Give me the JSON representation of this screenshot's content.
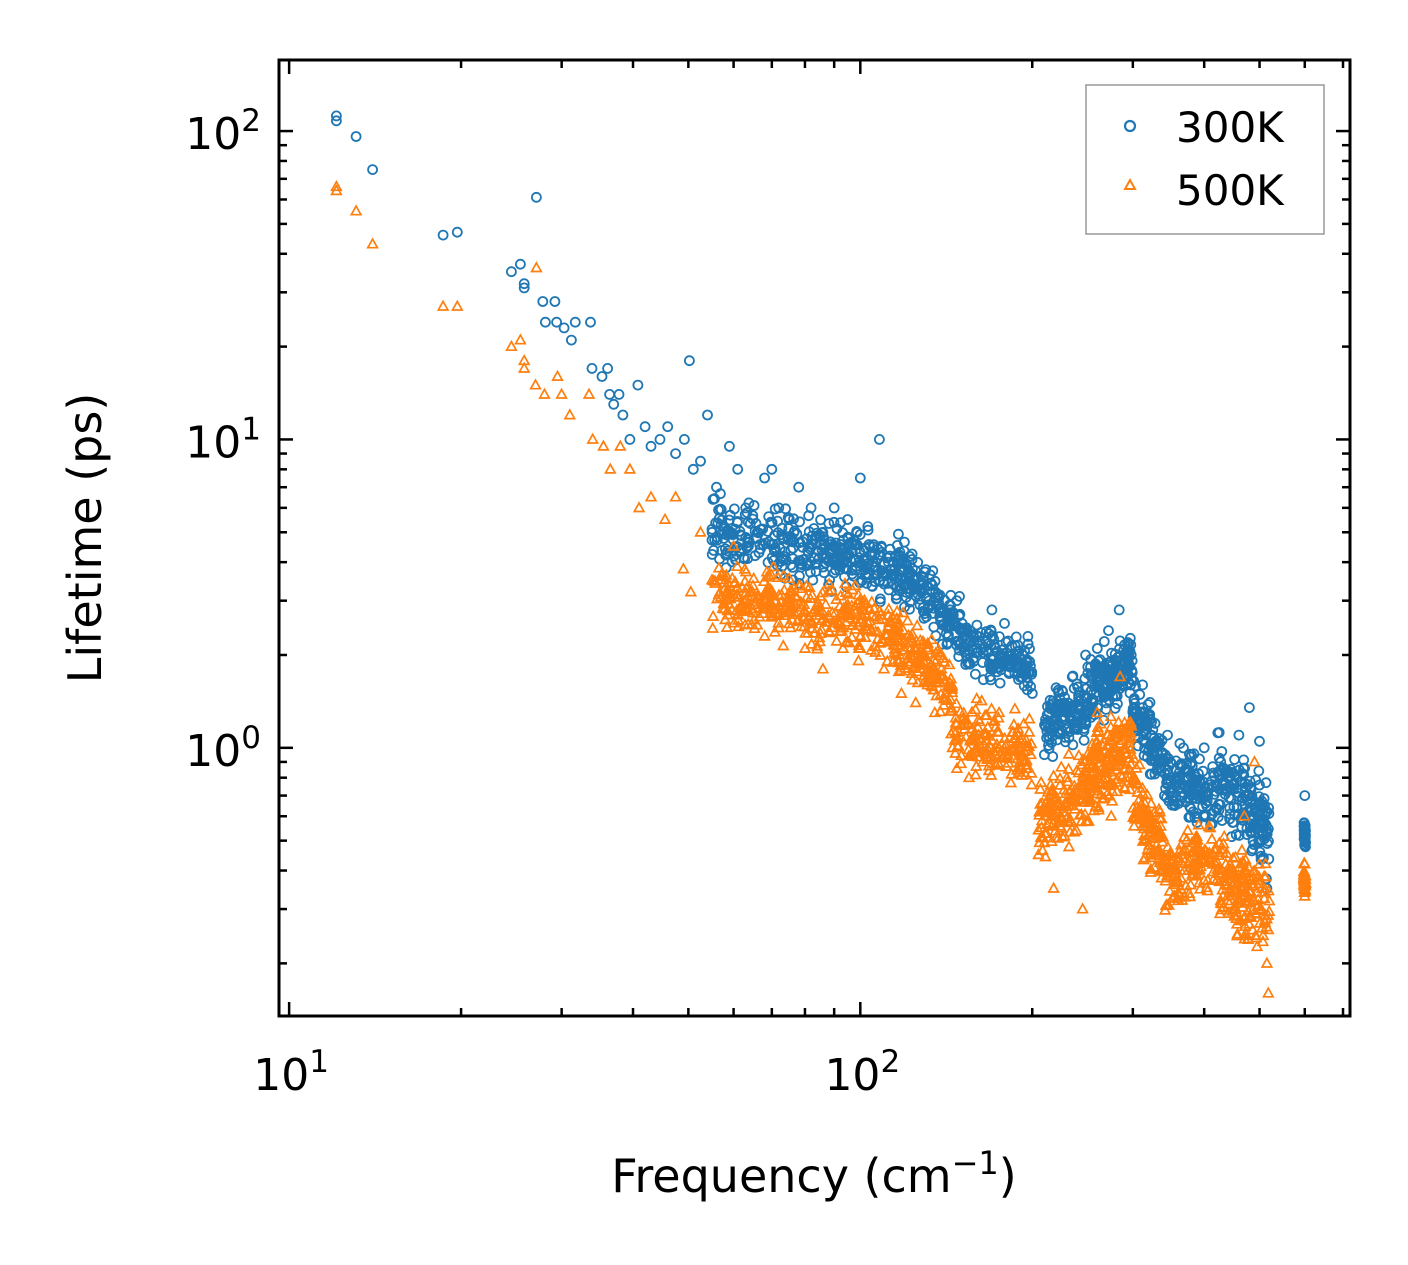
{
  "chart_data": {
    "type": "scatter",
    "title": "",
    "xlabel": "Frequency (cm",
    "xlabel_sup": "−1",
    "xlabel_close": ")",
    "ylabel": "Lifetime (ps)",
    "xscale": "log",
    "yscale": "log",
    "xlim": [
      9.6,
      720
    ],
    "ylim": [
      0.135,
      170
    ],
    "x_ticks": [
      {
        "value": 10,
        "base": "10",
        "exp": "1"
      },
      {
        "value": 100,
        "base": "10",
        "exp": "2"
      }
    ],
    "y_ticks": [
      {
        "value": 1,
        "base": "10",
        "exp": "0"
      },
      {
        "value": 10,
        "base": "10",
        "exp": "1"
      },
      {
        "value": 100,
        "base": "10",
        "exp": "2"
      }
    ],
    "legend_position": "top-right",
    "series": [
      {
        "name": "300K",
        "marker": "circle",
        "color": "#1f77b4",
        "points": [
          [
            12.1,
            108
          ],
          [
            12.1,
            112
          ],
          [
            13.1,
            96
          ],
          [
            14.0,
            75
          ],
          [
            18.6,
            46
          ],
          [
            19.7,
            47
          ],
          [
            24.5,
            35
          ],
          [
            25.4,
            37
          ],
          [
            25.8,
            32
          ],
          [
            25.8,
            31
          ],
          [
            27.1,
            61
          ],
          [
            27.8,
            28
          ],
          [
            28.1,
            24
          ],
          [
            29.2,
            28
          ],
          [
            29.4,
            24
          ],
          [
            30.3,
            23
          ],
          [
            31.2,
            21
          ],
          [
            31.7,
            24
          ],
          [
            33.7,
            24
          ],
          [
            33.9,
            17
          ],
          [
            35.3,
            16
          ],
          [
            36.1,
            17
          ],
          [
            36.4,
            14
          ],
          [
            37.0,
            13
          ],
          [
            37.8,
            14
          ],
          [
            38.4,
            12
          ],
          [
            39.5,
            10
          ],
          [
            40.8,
            15
          ],
          [
            42.0,
            11
          ],
          [
            43.0,
            9.5
          ],
          [
            44.6,
            10
          ],
          [
            46.0,
            11
          ],
          [
            47.5,
            9
          ],
          [
            49.2,
            10
          ],
          [
            50.2,
            18
          ],
          [
            51.0,
            8
          ],
          [
            52.5,
            8.5
          ],
          [
            54.0,
            12
          ],
          [
            56.0,
            7
          ],
          [
            59.0,
            9.5
          ],
          [
            61.0,
            8
          ],
          [
            63.0,
            6
          ],
          [
            66.0,
            5
          ],
          [
            68.0,
            7.5
          ],
          [
            70.0,
            8
          ],
          [
            72.0,
            6
          ],
          [
            75.0,
            5.5
          ],
          [
            78.0,
            7
          ],
          [
            82.0,
            6
          ],
          [
            86.0,
            5
          ],
          [
            90.0,
            6
          ],
          [
            95.0,
            5.5
          ],
          [
            100.0,
            7.5
          ],
          [
            104.0,
            4.5
          ],
          [
            108.0,
            10
          ],
          [
            112.0,
            4
          ],
          [
            118.0,
            4
          ],
          [
            125.0,
            3.5
          ],
          [
            132.0,
            3
          ],
          [
            140.0,
            2.5
          ],
          [
            150.0,
            2.2
          ],
          [
            160.0,
            2.5
          ],
          [
            170.0,
            2.8
          ],
          [
            180.0,
            2.2
          ],
          [
            190.0,
            1.8
          ],
          [
            200.0,
            1.5
          ],
          [
            210.0,
            0.95
          ],
          [
            222.0,
            1.2
          ],
          [
            235.0,
            1.7
          ],
          [
            248.0,
            2.0
          ],
          [
            260.0,
            2.1
          ],
          [
            272.0,
            2.4
          ],
          [
            284.0,
            2.8
          ],
          [
            298.0,
            2.0
          ],
          [
            312.0,
            1.6
          ],
          [
            328.0,
            1.2
          ],
          [
            345.0,
            1.1
          ],
          [
            362.0,
            0.8
          ],
          [
            380.0,
            0.95
          ],
          [
            400.0,
            1.0
          ],
          [
            420.0,
            0.75
          ],
          [
            440.0,
            0.8
          ],
          [
            460.0,
            1.1
          ],
          [
            480.0,
            1.35
          ],
          [
            500.0,
            1.05
          ],
          [
            515.0,
            0.35
          ],
          [
            600.0,
            0.7
          ],
          [
            600.0,
            0.55
          ]
        ],
        "clouds": [
          {
            "x_from": 55,
            "x_to": 112,
            "y_from": 5.2,
            "y_to": 3.8,
            "spread": 0.28,
            "count": 340
          },
          {
            "x_from": 112,
            "x_to": 150,
            "y_from": 4.0,
            "y_to": 2.4,
            "spread": 0.28,
            "count": 180
          },
          {
            "x_from": 150,
            "x_to": 200,
            "y_from": 2.2,
            "y_to": 1.8,
            "spread": 0.25,
            "count": 160
          },
          {
            "x_from": 210,
            "x_to": 250,
            "y_from": 1.2,
            "y_to": 1.4,
            "spread": 0.28,
            "count": 130
          },
          {
            "x_from": 250,
            "x_to": 300,
            "y_from": 1.5,
            "y_to": 1.9,
            "spread": 0.3,
            "count": 170
          },
          {
            "x_from": 300,
            "x_to": 340,
            "y_from": 1.3,
            "y_to": 0.9,
            "spread": 0.3,
            "count": 110
          },
          {
            "x_from": 340,
            "x_to": 420,
            "y_from": 0.8,
            "y_to": 0.7,
            "spread": 0.3,
            "count": 140
          },
          {
            "x_from": 420,
            "x_to": 520,
            "y_from": 0.8,
            "y_to": 0.55,
            "spread": 0.38,
            "count": 170
          },
          {
            "x_from": 598,
            "x_to": 602,
            "y_from": 0.55,
            "y_to": 0.5,
            "spread": 0.12,
            "count": 40
          }
        ]
      },
      {
        "name": "500K",
        "marker": "triangle",
        "color": "#ff7f0e",
        "points": [
          [
            12.1,
            64
          ],
          [
            12.1,
            66
          ],
          [
            13.1,
            55
          ],
          [
            14.0,
            43
          ],
          [
            18.6,
            27
          ],
          [
            19.7,
            27
          ],
          [
            24.5,
            20
          ],
          [
            25.4,
            21
          ],
          [
            25.8,
            18
          ],
          [
            25.8,
            17
          ],
          [
            27.1,
            36
          ],
          [
            27.0,
            15
          ],
          [
            28.0,
            14
          ],
          [
            29.5,
            16
          ],
          [
            30.0,
            14
          ],
          [
            31.0,
            12
          ],
          [
            33.5,
            14
          ],
          [
            34.0,
            10
          ],
          [
            35.5,
            9.5
          ],
          [
            36.5,
            8
          ],
          [
            38.0,
            9.5
          ],
          [
            39.5,
            8
          ],
          [
            41.0,
            6
          ],
          [
            43.0,
            6.5
          ],
          [
            45.5,
            5.5
          ],
          [
            47.5,
            6.5
          ],
          [
            49.0,
            3.8
          ],
          [
            50.5,
            3.2
          ],
          [
            52.5,
            5
          ],
          [
            55.0,
            3.5
          ],
          [
            58.0,
            2.6
          ],
          [
            60.0,
            4.5
          ],
          [
            63.0,
            3
          ],
          [
            66.0,
            2.5
          ],
          [
            68.0,
            2.3
          ],
          [
            72.0,
            2.7
          ],
          [
            76.0,
            3.2
          ],
          [
            80.0,
            2.1
          ],
          [
            86.0,
            1.8
          ],
          [
            92.0,
            2.5
          ],
          [
            100.0,
            2.1
          ],
          [
            110.0,
            1.8
          ],
          [
            118.0,
            1.5
          ],
          [
            125.0,
            1.4
          ],
          [
            135.0,
            1.3
          ],
          [
            145.0,
            1.0
          ],
          [
            155.0,
            0.8
          ],
          [
            165.0,
            1.1
          ],
          [
            175.0,
            1.3
          ],
          [
            185.0,
            1.0
          ],
          [
            195.0,
            0.9
          ],
          [
            205.0,
            0.45
          ],
          [
            218.0,
            0.35
          ],
          [
            230.0,
            0.8
          ],
          [
            245.0,
            0.3
          ],
          [
            260.0,
            1.3
          ],
          [
            275.0,
            0.6
          ],
          [
            285.0,
            1.7
          ],
          [
            300.0,
            0.8
          ],
          [
            315.0,
            0.5
          ],
          [
            335.0,
            0.4
          ],
          [
            355.0,
            0.33
          ],
          [
            375.0,
            0.4
          ],
          [
            395.0,
            0.45
          ],
          [
            410.0,
            0.55
          ],
          [
            430.0,
            0.4
          ],
          [
            450.0,
            0.3
          ],
          [
            470.0,
            0.6
          ],
          [
            490.0,
            0.9
          ],
          [
            505.0,
            0.35
          ],
          [
            515.0,
            0.2
          ],
          [
            518.0,
            0.16
          ],
          [
            600.0,
            0.42
          ],
          [
            600.0,
            0.33
          ]
        ],
        "clouds": [
          {
            "x_from": 55,
            "x_to": 112,
            "y_from": 3.2,
            "y_to": 2.5,
            "spread": 0.32,
            "count": 330
          },
          {
            "x_from": 112,
            "x_to": 145,
            "y_from": 2.4,
            "y_to": 1.5,
            "spread": 0.3,
            "count": 170
          },
          {
            "x_from": 145,
            "x_to": 200,
            "y_from": 1.1,
            "y_to": 1.0,
            "spread": 0.32,
            "count": 160
          },
          {
            "x_from": 205,
            "x_to": 250,
            "y_from": 0.55,
            "y_to": 0.75,
            "spread": 0.35,
            "count": 140
          },
          {
            "x_from": 250,
            "x_to": 300,
            "y_from": 0.8,
            "y_to": 1.0,
            "spread": 0.4,
            "count": 170
          },
          {
            "x_from": 300,
            "x_to": 340,
            "y_from": 0.7,
            "y_to": 0.45,
            "spread": 0.35,
            "count": 110
          },
          {
            "x_from": 340,
            "x_to": 420,
            "y_from": 0.38,
            "y_to": 0.45,
            "spread": 0.3,
            "count": 140
          },
          {
            "x_from": 420,
            "x_to": 520,
            "y_from": 0.4,
            "y_to": 0.3,
            "spread": 0.42,
            "count": 170
          },
          {
            "x_from": 598,
            "x_to": 602,
            "y_from": 0.38,
            "y_to": 0.36,
            "spread": 0.12,
            "count": 40
          }
        ]
      }
    ]
  }
}
